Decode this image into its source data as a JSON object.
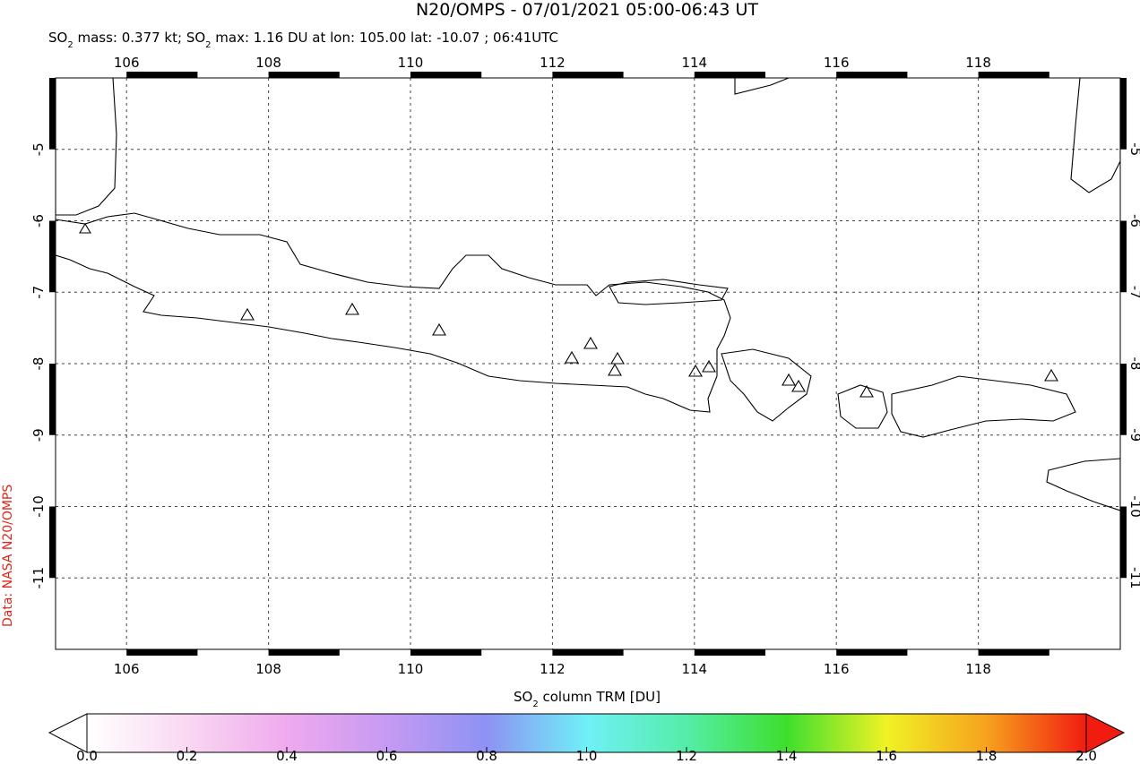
{
  "title": "N20/OMPS - 07/01/2021 05:00-06:43 UT",
  "subtitle": [
    {
      "text": "SO"
    },
    {
      "text": "2",
      "sub": true
    },
    {
      "text": " mass: 0.377 kt; SO"
    },
    {
      "text": "2",
      "sub": true
    },
    {
      "text": " max: 1.16 DU at lon: 105.00 lat: -10.07 ; 06:41UTC"
    }
  ],
  "map": {
    "xlim": [
      105,
      120
    ],
    "ylim": [
      -4,
      -12
    ],
    "xticks": [
      106,
      108,
      110,
      112,
      114,
      116,
      118
    ],
    "yticks": [
      -5,
      -6,
      -7,
      -8,
      -9,
      -10,
      -11
    ],
    "grid": true
  },
  "colorbar": {
    "label": [
      {
        "text": "SO"
      },
      {
        "text": "2",
        "sub": true
      },
      {
        "text": " column TRM [DU]"
      }
    ],
    "lim": [
      0,
      2
    ],
    "ticks": [
      {
        "value": 0,
        "label": "0.0"
      },
      {
        "value": 0.2,
        "label": "0.2"
      },
      {
        "value": 0.4,
        "label": "0.4"
      },
      {
        "value": 0.6,
        "label": "0.6"
      },
      {
        "value": 0.8,
        "label": "0.8"
      },
      {
        "value": 1,
        "label": "1.0"
      },
      {
        "value": 1.2,
        "label": "1.2"
      },
      {
        "value": 1.4,
        "label": "1.4"
      },
      {
        "value": 1.6,
        "label": "1.6"
      },
      {
        "value": 1.8,
        "label": "1.8"
      },
      {
        "value": 2,
        "label": "2.0"
      }
    ]
  },
  "credit": "Data: NASA N20/OMPS"
}
